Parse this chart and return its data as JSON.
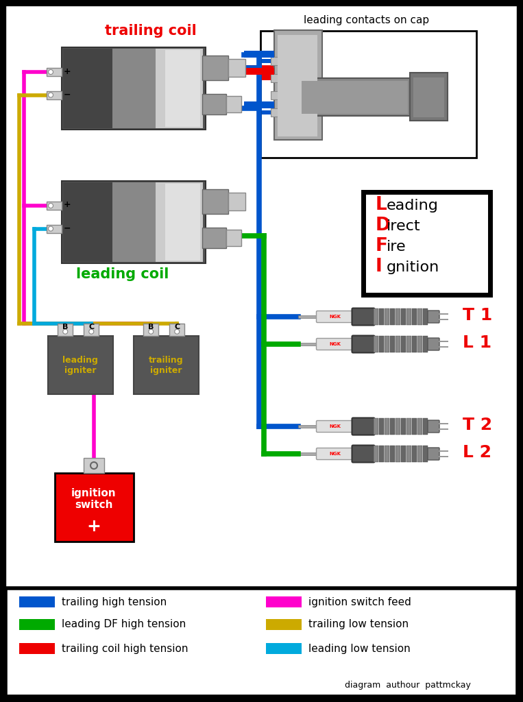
{
  "background": "#111111",
  "colors": {
    "blue": "#0055cc",
    "green": "#00aa00",
    "red": "#ee0000",
    "magenta": "#ff00cc",
    "yellow": "#ccaa00",
    "cyan": "#00aadd"
  },
  "legend": [
    {
      "color": "#0055cc",
      "label": "trailing high tension"
    },
    {
      "color": "#00aa00",
      "label": "leading DF high tension"
    },
    {
      "color": "#ee0000",
      "label": "trailing coil high tension"
    },
    {
      "color": "#ff00cc",
      "label": "ignition switch feed"
    },
    {
      "color": "#ccaa00",
      "label": "trailing low tension"
    },
    {
      "color": "#00aadd",
      "label": "leading low tension"
    }
  ],
  "ldfi": [
    {
      "letter": "L",
      "rest": "eading"
    },
    {
      "letter": "D",
      "rest": "irect"
    },
    {
      "letter": "F",
      "rest": "ire"
    },
    {
      "letter": "I",
      "rest": "gnition"
    }
  ]
}
